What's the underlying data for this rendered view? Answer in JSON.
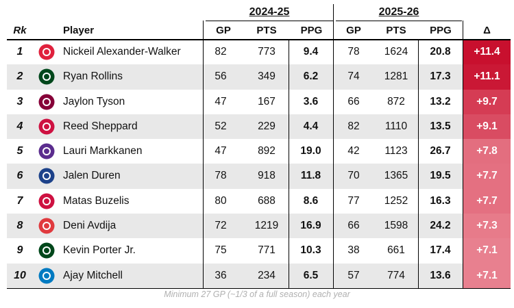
{
  "chart_data": {
    "type": "table",
    "group_headers": [
      "2024-25",
      "2025-26"
    ],
    "columns": [
      "Rk",
      "Player",
      "GP",
      "PTS",
      "PPG",
      "GP",
      "PTS",
      "PPG",
      "Δ"
    ],
    "rows": [
      {
        "rk": "1",
        "team_icon": "hawks-logo-icon",
        "player": "Nickeil Alexander-Walker",
        "gp1": "82",
        "pts1": "773",
        "ppg1": "9.4",
        "gp2": "78",
        "pts2": "1624",
        "ppg2": "20.8",
        "delta": "+11.4",
        "delta_value": 11.4,
        "color": "#e0213d"
      },
      {
        "rk": "2",
        "team_icon": "bucks-logo-icon",
        "player": "Ryan Rollins",
        "gp1": "56",
        "pts1": "349",
        "ppg1": "6.2",
        "gp2": "74",
        "pts2": "1281",
        "ppg2": "17.3",
        "delta": "+11.1",
        "delta_value": 11.1,
        "color": "#00471b"
      },
      {
        "rk": "3",
        "team_icon": "cavaliers-logo-icon",
        "player": "Jaylon Tyson",
        "gp1": "47",
        "pts1": "167",
        "ppg1": "3.6",
        "gp2": "66",
        "pts2": "872",
        "ppg2": "13.2",
        "delta": "+9.7",
        "delta_value": 9.7,
        "color": "#860038"
      },
      {
        "rk": "4",
        "team_icon": "rockets-logo-icon",
        "player": "Reed Sheppard",
        "gp1": "52",
        "pts1": "229",
        "ppg1": "4.4",
        "gp2": "82",
        "pts2": "1110",
        "ppg2": "13.5",
        "delta": "+9.1",
        "delta_value": 9.1,
        "color": "#ce1141"
      },
      {
        "rk": "5",
        "team_icon": "jazz-logo-icon",
        "player": "Lauri Markkanen",
        "gp1": "47",
        "pts1": "892",
        "ppg1": "19.0",
        "gp2": "42",
        "pts2": "1123",
        "ppg2": "26.7",
        "delta": "+7.8",
        "delta_value": 7.8,
        "color": "#5b2d8e"
      },
      {
        "rk": "6",
        "team_icon": "pistons-logo-icon",
        "player": "Jalen Duren",
        "gp1": "78",
        "pts1": "918",
        "ppg1": "11.8",
        "gp2": "70",
        "pts2": "1365",
        "ppg2": "19.5",
        "delta": "+7.7",
        "delta_value": 7.7,
        "color": "#1d428a"
      },
      {
        "rk": "7",
        "team_icon": "bulls-logo-icon",
        "player": "Matas Buzelis",
        "gp1": "80",
        "pts1": "688",
        "ppg1": "8.6",
        "gp2": "77",
        "pts2": "1252",
        "ppg2": "16.3",
        "delta": "+7.7",
        "delta_value": 7.7,
        "color": "#ce1141"
      },
      {
        "rk": "8",
        "team_icon": "trail-blazers-logo-icon",
        "player": "Deni Avdija",
        "gp1": "72",
        "pts1": "1219",
        "ppg1": "16.9",
        "gp2": "66",
        "pts2": "1598",
        "ppg2": "24.2",
        "delta": "+7.3",
        "delta_value": 7.3,
        "color": "#e03a3e"
      },
      {
        "rk": "9",
        "team_icon": "bucks-logo-icon",
        "player": "Kevin Porter Jr.",
        "gp1": "75",
        "pts1": "771",
        "ppg1": "10.3",
        "gp2": "38",
        "pts2": "661",
        "ppg2": "17.4",
        "delta": "+7.1",
        "delta_value": 7.1,
        "color": "#00471b"
      },
      {
        "rk": "10",
        "team_icon": "thunder-logo-icon",
        "player": "Ajay Mitchell",
        "gp1": "36",
        "pts1": "234",
        "ppg1": "6.5",
        "gp2": "57",
        "pts2": "774",
        "ppg2": "13.6",
        "delta": "+7.1",
        "delta_value": 7.1,
        "color": "#007ac1"
      }
    ],
    "footnote": "Minimum 27 GP (~1/3 of a full season) each year",
    "delta_color_scale": [
      "#e8808f",
      "#c8102e"
    ]
  }
}
